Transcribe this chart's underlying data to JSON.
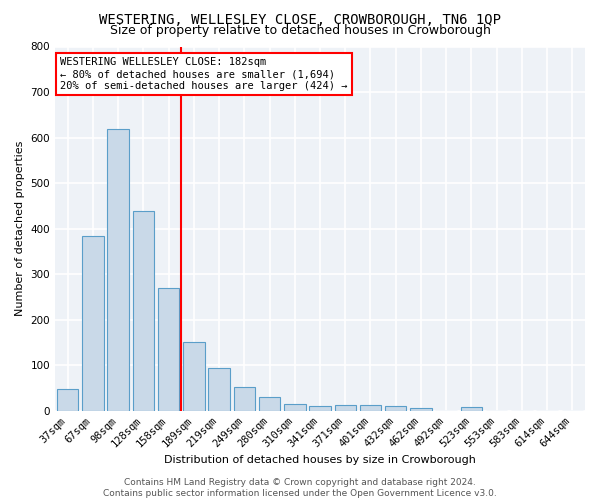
{
  "title": "WESTERING, WELLESLEY CLOSE, CROWBOROUGH, TN6 1QP",
  "subtitle": "Size of property relative to detached houses in Crowborough",
  "xlabel": "Distribution of detached houses by size in Crowborough",
  "ylabel": "Number of detached properties",
  "categories": [
    "37sqm",
    "67sqm",
    "98sqm",
    "128sqm",
    "158sqm",
    "189sqm",
    "219sqm",
    "249sqm",
    "280sqm",
    "310sqm",
    "341sqm",
    "371sqm",
    "401sqm",
    "432sqm",
    "462sqm",
    "492sqm",
    "523sqm",
    "553sqm",
    "583sqm",
    "614sqm",
    "644sqm"
  ],
  "values": [
    48,
    383,
    620,
    440,
    270,
    152,
    95,
    53,
    30,
    15,
    10,
    13,
    13,
    10,
    7,
    0,
    8,
    0,
    0,
    0,
    0
  ],
  "bar_color": "#c9d9e8",
  "bar_edge_color": "#5a9ec9",
  "red_line_index": 5,
  "annotation_text": "WESTERING WELLESLEY CLOSE: 182sqm\n← 80% of detached houses are smaller (1,694)\n20% of semi-detached houses are larger (424) →",
  "annotation_box_color": "white",
  "annotation_box_edge_color": "red",
  "ylim": [
    0,
    800
  ],
  "yticks": [
    0,
    100,
    200,
    300,
    400,
    500,
    600,
    700,
    800
  ],
  "footer_line1": "Contains HM Land Registry data © Crown copyright and database right 2024.",
  "footer_line2": "Contains public sector information licensed under the Open Government Licence v3.0.",
  "background_color": "#eef2f7",
  "grid_color": "white",
  "title_fontsize": 10,
  "subtitle_fontsize": 9,
  "axis_label_fontsize": 8,
  "tick_fontsize": 7.5,
  "annotation_fontsize": 7.5,
  "footer_fontsize": 6.5
}
